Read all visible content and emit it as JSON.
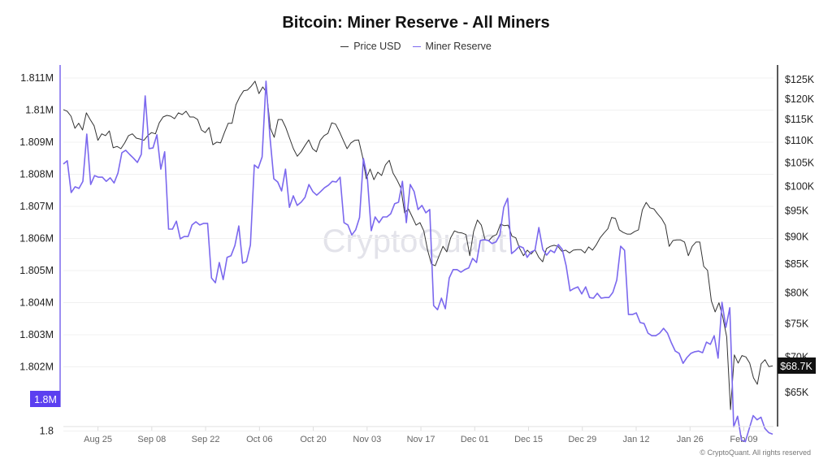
{
  "chart_data": {
    "type": "line",
    "title": "Bitcoin: Miner Reserve - All Miners",
    "legend": [
      "Price USD",
      "Miner Reserve"
    ],
    "legend_position": "top-center",
    "watermark": "CryptoQuant",
    "copyright": "© CryptoQuant. All rights reserved",
    "x_tick_labels": [
      "Aug 25",
      "Sep 08",
      "Sep 22",
      "Oct 06",
      "Oct 20",
      "Nov 03",
      "Nov 17",
      "Dec 01",
      "Dec 15",
      "Dec 29",
      "Jan 12",
      "Jan 26",
      "Feb 09"
    ],
    "x_tick_days": [
      9,
      23,
      37,
      51,
      65,
      79,
      93,
      107,
      121,
      135,
      149,
      163,
      177
    ],
    "x_total_days": 184.5,
    "left_axis": {
      "ylim": [
        1.79975,
        1.8114
      ],
      "ticks": [
        1.8,
        1.802,
        1.803,
        1.804,
        1.805,
        1.806,
        1.807,
        1.808,
        1.809,
        1.81,
        1.811
      ],
      "tick_labels": [
        "1.8",
        "1.802M",
        "1.803M",
        "1.804M",
        "1.805M",
        "1.806M",
        "1.807M",
        "1.808M",
        "1.809M",
        "1.81M",
        "1.811M"
      ],
      "current_label": "1.8M",
      "color": "#7b68ee"
    },
    "right_axis": {
      "scale": "log",
      "ticks": [
        65,
        70,
        75,
        80,
        85,
        90,
        95,
        100,
        105,
        110,
        115,
        120,
        125
      ],
      "tick_labels": [
        "$65K",
        "$70K",
        "$75K",
        "$80K",
        "$85K",
        "$90K",
        "$95K",
        "$100K",
        "$105K",
        "$110K",
        "$115K",
        "$120K",
        "$125K"
      ],
      "current_label": "$68.7K",
      "color": "#222222"
    },
    "grid": true,
    "series": [
      {
        "name": "Price USD",
        "axis": "right",
        "unit": "K USD",
        "color": "#333333",
        "values": [
          117.4,
          117.0,
          115.8,
          112.9,
          114.1,
          112.5,
          116.6,
          115.0,
          113.5,
          110.1,
          111.6,
          111.2,
          112.3,
          108.4,
          108.7,
          108.2,
          109.5,
          111.2,
          111.6,
          110.6,
          110.4,
          110.1,
          111.2,
          111.9,
          111.6,
          114.2,
          115.6,
          116.0,
          115.8,
          115.2,
          116.6,
          116.2,
          117.0,
          115.6,
          115.6,
          115.0,
          112.5,
          111.9,
          113.1,
          109.1,
          109.7,
          109.5,
          111.9,
          114.1,
          114.1,
          118.6,
          120.6,
          122.1,
          122.3,
          123.3,
          124.6,
          121.4,
          123.1,
          121.7,
          112.9,
          110.8,
          115.0,
          115.0,
          113.1,
          110.6,
          108.2,
          106.5,
          107.5,
          108.9,
          110.2,
          108.2,
          107.5,
          110.1,
          111.2,
          111.7,
          114.2,
          113.9,
          112.1,
          110.1,
          108.2,
          109.5,
          110.1,
          110.2,
          106.5,
          101.6,
          103.7,
          101.4,
          103.0,
          102.3,
          104.6,
          105.6,
          102.8,
          101.4,
          99.7,
          94.6,
          95.4,
          93.8,
          92.2,
          92.7,
          91.1,
          87.5,
          85.0,
          84.7,
          86.5,
          88.2,
          87.2,
          89.8,
          91.1,
          90.8,
          90.7,
          90.4,
          86.5,
          91.0,
          93.2,
          92.2,
          89.4,
          89.3,
          90.1,
          90.4,
          92.4,
          92.1,
          92.2,
          90.1,
          89.8,
          87.8,
          86.5,
          87.5,
          86.8,
          87.6,
          86.2,
          85.4,
          87.8,
          88.2,
          88.4,
          88.2,
          87.3,
          87.5,
          87.0,
          87.5,
          87.6,
          87.6,
          87.0,
          88.1,
          87.5,
          88.5,
          89.8,
          90.7,
          91.5,
          93.7,
          93.5,
          91.3,
          90.8,
          90.5,
          90.5,
          91.0,
          91.3,
          95.2,
          96.7,
          95.6,
          95.4,
          94.4,
          93.5,
          92.2,
          88.2,
          89.3,
          89.4,
          89.4,
          89.0,
          86.5,
          88.2,
          89.0,
          89.0,
          84.6,
          83.9,
          78.7,
          76.9,
          78.4,
          76.0,
          73.0,
          62.7,
          70.3,
          69.1,
          70.2,
          70.0,
          69.1,
          67.0,
          66.1,
          69.0,
          69.6,
          68.6,
          68.7
        ]
      },
      {
        "name": "Miner Reserve",
        "axis": "left",
        "unit": "M BTC",
        "color": "#7b68ee",
        "values": [
          1.80832,
          1.80842,
          1.80743,
          1.80761,
          1.80756,
          1.80778,
          1.80925,
          1.80768,
          1.80796,
          1.80791,
          1.80791,
          1.80778,
          1.80789,
          1.80773,
          1.80804,
          1.80867,
          1.80875,
          1.80862,
          1.8085,
          1.80837,
          1.80862,
          1.81044,
          1.8088,
          1.80882,
          1.80923,
          1.80816,
          1.8087,
          1.80629,
          1.80629,
          1.80654,
          1.80599,
          1.80606,
          1.80606,
          1.80642,
          1.80652,
          1.80642,
          1.80647,
          1.80647,
          1.80477,
          1.80462,
          1.80525,
          1.80472,
          1.80541,
          1.80546,
          1.80578,
          1.80639,
          1.80523,
          1.80528,
          1.8058,
          1.80829,
          1.80819,
          1.80854,
          1.8109,
          1.80918,
          1.80786,
          1.80776,
          1.80748,
          1.80816,
          1.80697,
          1.80733,
          1.80703,
          1.80713,
          1.80728,
          1.80768,
          1.80746,
          1.80735,
          1.80746,
          1.80758,
          1.80766,
          1.80778,
          1.80776,
          1.80791,
          1.80649,
          1.80642,
          1.80611,
          1.80627,
          1.80665,
          1.80849,
          1.80789,
          1.80624,
          1.80667,
          1.80649,
          1.80667,
          1.80667,
          1.80677,
          1.80708,
          1.80713,
          1.80778,
          1.80649,
          1.80768,
          1.80746,
          1.8069,
          1.80703,
          1.8068,
          1.8069,
          1.80391,
          1.80378,
          1.80414,
          1.80381,
          1.80477,
          1.80503,
          1.80503,
          1.80495,
          1.80503,
          1.80508,
          1.80538,
          1.80525,
          1.80594,
          1.80596,
          1.80594,
          1.80584,
          1.80589,
          1.80611,
          1.80697,
          1.80725,
          1.80553,
          1.80563,
          1.80576,
          1.80571,
          1.80541,
          1.80558,
          1.80563,
          1.80634,
          1.80566,
          1.80548,
          1.80563,
          1.80556,
          1.80581,
          1.80566,
          1.80515,
          1.80437,
          1.80444,
          1.80449,
          1.80427,
          1.80449,
          1.80416,
          1.80414,
          1.80429,
          1.80414,
          1.80416,
          1.80416,
          1.80432,
          1.8047,
          1.80576,
          1.80563,
          1.80363,
          1.80363,
          1.80368,
          1.80338,
          1.80335,
          1.80305,
          1.80297,
          1.80297,
          1.80305,
          1.8032,
          1.80305,
          1.80275,
          1.80249,
          1.80242,
          1.80211,
          1.80229,
          1.80242,
          1.80247,
          1.80249,
          1.80244,
          1.80277,
          1.8027,
          1.80297,
          1.80227,
          1.80401,
          1.80323,
          1.80384,
          1.80013,
          1.80046,
          1.79972,
          1.79967,
          1.80008,
          1.80048,
          1.80035,
          1.80043,
          1.80008,
          1.79995,
          1.7999
        ]
      }
    ]
  }
}
